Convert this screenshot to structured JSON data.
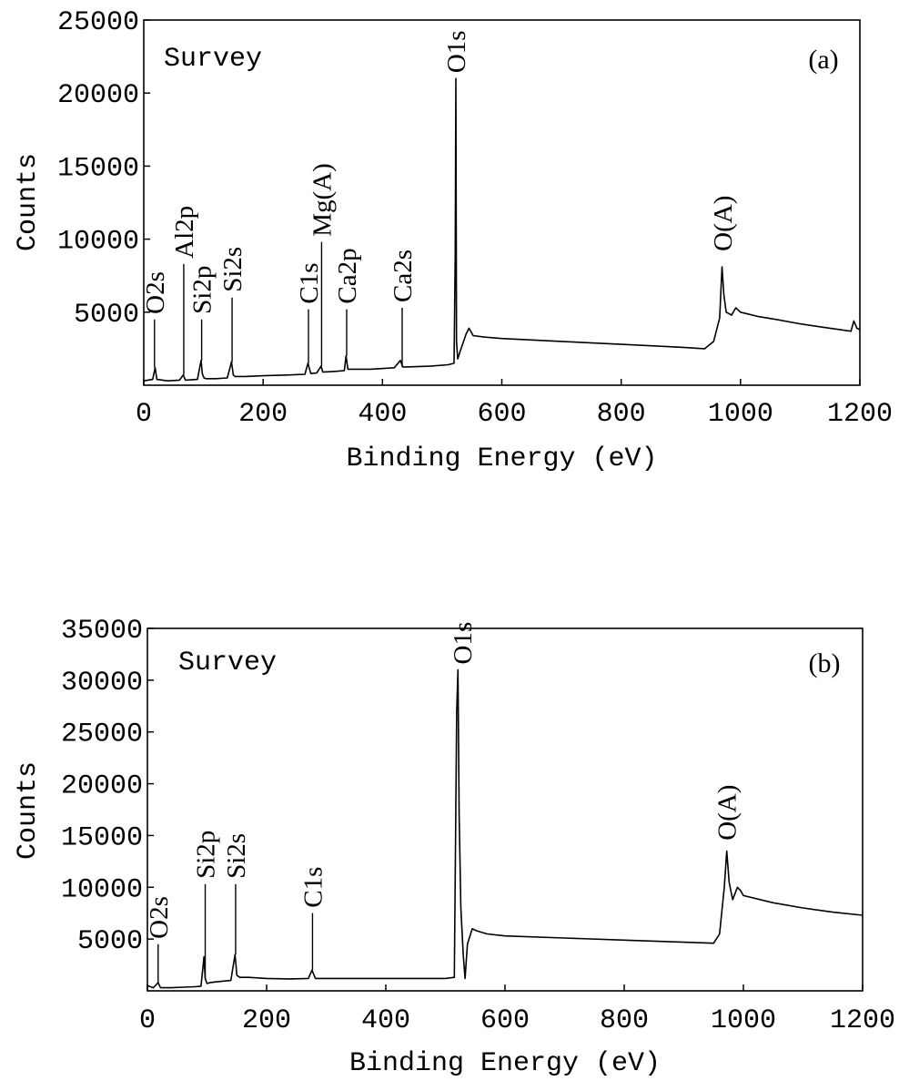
{
  "chart_data": [
    {
      "type": "line",
      "panel_label": "(a)",
      "annotation": "Survey",
      "xlabel": "Binding Energy (eV)",
      "ylabel": "Counts",
      "xlim": [
        0,
        1200
      ],
      "ylim": [
        0,
        25000
      ],
      "x_ticks": [
        0,
        200,
        400,
        600,
        800,
        1000,
        1200
      ],
      "y_ticks": [
        5000,
        10000,
        15000,
        20000,
        25000
      ],
      "y_tick_top": 25000,
      "grid": false,
      "series": [
        {
          "x": [
            0,
            15,
            19,
            22,
            40,
            60,
            66,
            70,
            90,
            96,
            98,
            101,
            104,
            120,
            140,
            147,
            150,
            153,
            170,
            200,
            240,
            270,
            275,
            280,
            290,
            297,
            300,
            320,
            336,
            339,
            342,
            350,
            380,
            420,
            430,
            434,
            440,
            480,
            510,
            520,
            522,
            523,
            524,
            526,
            530,
            540,
            545,
            552,
            570,
            600,
            700,
            800,
            900,
            940,
            955,
            965,
            969,
            972,
            976,
            985,
            992,
            1000,
            1030,
            1060,
            1100,
            1150,
            1185,
            1190,
            1195,
            1200
          ],
          "y": [
            300,
            400,
            1200,
            400,
            300,
            350,
            700,
            350,
            400,
            1700,
            800,
            500,
            450,
            450,
            500,
            1600,
            700,
            600,
            600,
            650,
            700,
            750,
            1500,
            800,
            850,
            1300,
            900,
            950,
            1000,
            2000,
            1100,
            1100,
            1100,
            1200,
            1700,
            1250,
            1250,
            1300,
            1400,
            1500,
            9000,
            21000,
            3000,
            1800,
            2300,
            3500,
            3900,
            3400,
            3300,
            3200,
            3000,
            2800,
            2600,
            2500,
            3000,
            4600,
            8100,
            6200,
            5000,
            4800,
            5300,
            5000,
            4700,
            4500,
            4200,
            3900,
            3700,
            4400,
            3900,
            3800
          ]
        }
      ],
      "peak_labels": [
        {
          "text": "O2s",
          "x": 18,
          "y": 4500
        },
        {
          "text": "Al2p",
          "x": 67,
          "y": 8300
        },
        {
          "text": "Si2p",
          "x": 97,
          "y": 4500
        },
        {
          "text": "Si2s",
          "x": 148,
          "y": 6000
        },
        {
          "text": "C1s",
          "x": 276,
          "y": 5200
        },
        {
          "text": "Mg(A)",
          "x": 298,
          "y": 9800
        },
        {
          "text": "Ca2p",
          "x": 340,
          "y": 5200
        },
        {
          "text": "Ca2s",
          "x": 433,
          "y": 5300
        },
        {
          "text": "O1s",
          "x": 523,
          "y": 21000
        },
        {
          "text": "O(A)",
          "x": 970,
          "y": 8800
        }
      ]
    },
    {
      "type": "line",
      "panel_label": "(b)",
      "annotation": "Survey",
      "xlabel": "Binding Energy (eV)",
      "ylabel": "Counts",
      "xlim": [
        0,
        1200
      ],
      "ylim": [
        0,
        35000
      ],
      "x_ticks": [
        0,
        200,
        400,
        600,
        800,
        1000,
        1200
      ],
      "y_ticks": [
        5000,
        10000,
        15000,
        20000,
        25000,
        30000,
        35000
      ],
      "grid": false,
      "series": [
        {
          "x": [
            0,
            10,
            18,
            22,
            40,
            60,
            80,
            90,
            95,
            97,
            100,
            105,
            120,
            140,
            147,
            150,
            155,
            170,
            200,
            240,
            270,
            276,
            282,
            300,
            400,
            500,
            515,
            519,
            521,
            523,
            526,
            530,
            533,
            537,
            545,
            552,
            570,
            600,
            700,
            800,
            900,
            950,
            960,
            968,
            972,
            976,
            982,
            990,
            995,
            1000,
            1050,
            1100,
            1150,
            1200
          ],
          "y": [
            500,
            300,
            800,
            300,
            300,
            350,
            400,
            450,
            3300,
            1200,
            700,
            800,
            900,
            1000,
            3500,
            1500,
            1300,
            1300,
            1200,
            1150,
            1200,
            2000,
            1200,
            1200,
            1200,
            1200,
            1300,
            27000,
            31000,
            17000,
            8000,
            3500,
            1200,
            4500,
            6000,
            5800,
            5500,
            5300,
            5100,
            4900,
            4700,
            4600,
            5500,
            10000,
            13500,
            10500,
            8800,
            10000,
            9700,
            9200,
            8500,
            8000,
            7600,
            7300
          ]
        }
      ],
      "peak_labels": [
        {
          "text": "O2s",
          "x": 18,
          "y": 4500
        },
        {
          "text": "Si2p",
          "x": 97,
          "y": 10300
        },
        {
          "text": "Si2s",
          "x": 148,
          "y": 10300
        },
        {
          "text": "C1s",
          "x": 277,
          "y": 7500
        },
        {
          "text": "O1s",
          "x": 528,
          "y": 31000
        },
        {
          "text": "O(A)",
          "x": 972,
          "y": 14000
        }
      ]
    }
  ]
}
